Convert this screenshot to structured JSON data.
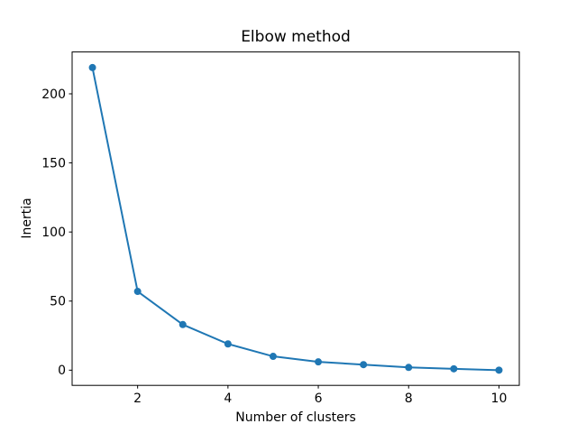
{
  "figure": {
    "background": "#ffffff",
    "spine_color": "#000000",
    "text_color": "#000000"
  },
  "chart_data": {
    "type": "line",
    "title": "Elbow method",
    "xlabel": "Number of clusters",
    "ylabel": "Inertia",
    "x": [
      1,
      2,
      3,
      4,
      5,
      6,
      7,
      8,
      9,
      10
    ],
    "y": [
      219,
      57,
      33,
      19,
      10,
      6,
      4,
      2,
      1,
      0
    ],
    "xlim": [
      0.55,
      10.45
    ],
    "ylim": [
      -11,
      230.3
    ],
    "xticks": [
      2,
      4,
      6,
      8,
      10
    ],
    "yticks": [
      0,
      50,
      100,
      150,
      200
    ],
    "grid": false,
    "legend": "none",
    "line_color": "#1f77b4",
    "marker": "o",
    "marker_color": "#1f77b4"
  }
}
